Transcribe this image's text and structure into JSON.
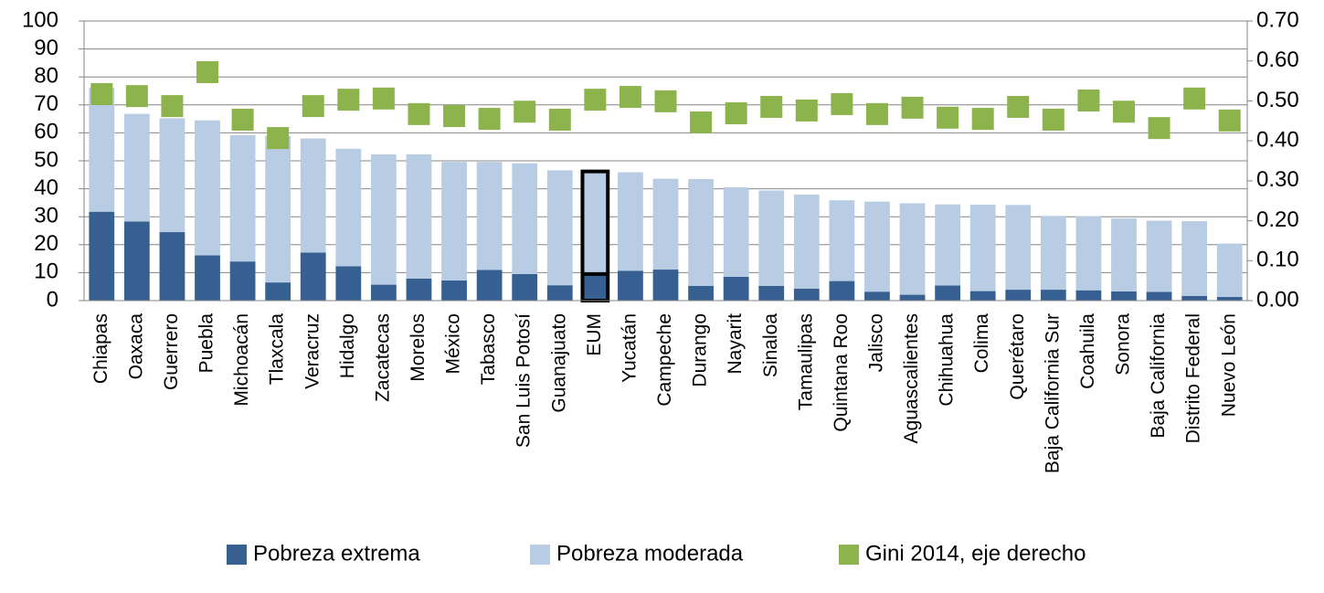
{
  "chart_data": {
    "type": "bar",
    "categories": [
      "Chiapas",
      "Oaxaca",
      "Guerrero",
      "Puebla",
      "Michoacán",
      "Tlaxcala",
      "Veracruz",
      "Hidalgo",
      "Zacatecas",
      "Morelos",
      "México",
      "Tabasco",
      "San Luis Potosí",
      "Guanajuato",
      "EUM",
      "Yucatán",
      "Campeche",
      "Durango",
      "Nayarit",
      "Sinaloa",
      "Tamaulipas",
      "Quintana Roo",
      "Jalisco",
      "Aguascalientes",
      "Chihuahua",
      "Colima",
      "Querétaro",
      "Baja California Sur",
      "Coahuila",
      "Sonora",
      "Baja California",
      "Distrito Federal",
      "Nuevo León"
    ],
    "stacked": true,
    "highlight": "EUM",
    "series": [
      {
        "name": "Pobreza extrema",
        "color": "#366092",
        "values": [
          31.8,
          28.3,
          24.5,
          16.2,
          14.0,
          6.5,
          17.2,
          12.3,
          5.7,
          7.9,
          7.2,
          11.0,
          9.5,
          5.5,
          9.5,
          10.7,
          11.1,
          5.3,
          8.5,
          5.3,
          4.3,
          7.0,
          3.2,
          2.1,
          5.4,
          3.4,
          3.9,
          3.9,
          3.7,
          3.3,
          3.1,
          1.7,
          1.3
        ]
      },
      {
        "name": "Pobreza moderada",
        "color": "#b8cce4",
        "values": [
          44.4,
          38.5,
          40.7,
          48.3,
          45.2,
          52.4,
          40.8,
          42.0,
          46.6,
          44.4,
          42.4,
          38.6,
          39.6,
          41.1,
          36.7,
          35.2,
          32.5,
          38.2,
          32.0,
          34.1,
          33.6,
          28.9,
          32.2,
          32.7,
          29.0,
          30.9,
          30.3,
          26.4,
          26.5,
          26.1,
          25.5,
          26.7,
          19.1
        ]
      },
      {
        "name": "Gini 2014, eje derecho",
        "color": "#8db44c",
        "axis": "y2",
        "type": "scatter",
        "values": [
          0.517,
          0.512,
          0.487,
          0.572,
          0.453,
          0.407,
          0.487,
          0.503,
          0.506,
          0.467,
          0.462,
          0.455,
          0.473,
          0.453,
          0.503,
          0.51,
          0.499,
          0.446,
          0.469,
          0.485,
          0.476,
          0.492,
          0.467,
          0.483,
          0.458,
          0.455,
          0.485,
          0.453,
          0.501,
          0.473,
          0.432,
          0.506,
          0.451
        ]
      }
    ],
    "ylim": [
      0,
      100
    ],
    "yticks": [
      0,
      10,
      20,
      30,
      40,
      50,
      60,
      70,
      80,
      90,
      100
    ],
    "y2lim": [
      0,
      0.7
    ],
    "y2ticks": [
      {
        "value": 0,
        "label": "0.00"
      },
      {
        "value": 0.1,
        "label": "0.10"
      },
      {
        "value": 0.2,
        "label": "0.20"
      },
      {
        "value": 0.3,
        "label": "0.30"
      },
      {
        "value": 0.4,
        "label": "0.40"
      },
      {
        "value": 0.5,
        "label": "0.50"
      },
      {
        "value": 0.6,
        "label": "0.60"
      },
      {
        "value": 0.7,
        "label": "0.70"
      }
    ],
    "grid": true,
    "legend": "bottom"
  }
}
